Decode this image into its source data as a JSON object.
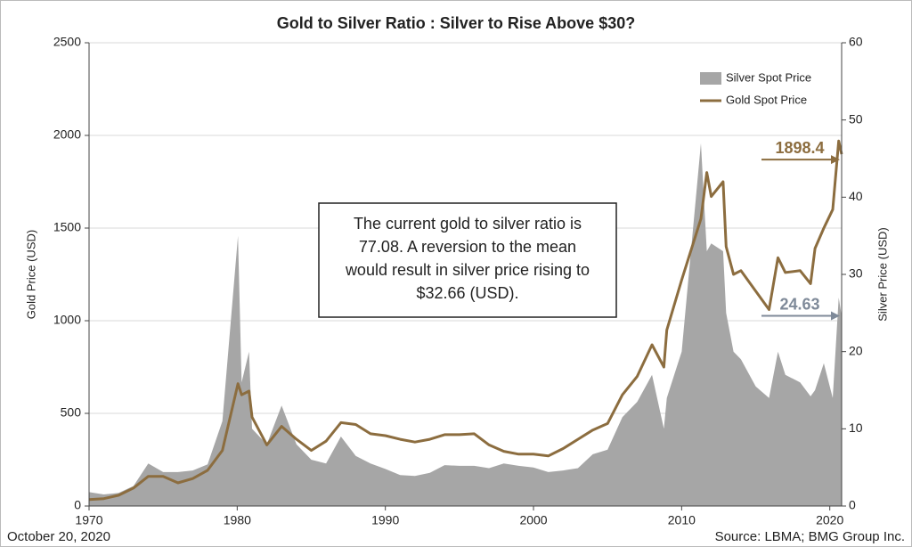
{
  "chart_data": {
    "type": "line",
    "title": "Gold to Silver Ratio : Silver to Rise Above $30?",
    "ylabel": "Gold Price (USD)",
    "y2label": "Silver Price (USD)",
    "date": "October 20, 2020",
    "source": "Source: LBMA; BMG Group Inc.",
    "annotation": [
      "The current gold to silver ratio is",
      "77.08. A reversion to the mean",
      "would result in silver price rising to",
      "$32.66 (USD)."
    ],
    "xlim": [
      1970,
      2020.8
    ],
    "xticks": [
      1970,
      1980,
      1990,
      2000,
      2010,
      2020
    ],
    "ylim": [
      0,
      2500
    ],
    "yticks": [
      0,
      500,
      1000,
      1500,
      2000,
      2500
    ],
    "y2lim": [
      0,
      60
    ],
    "y2ticks": [
      0,
      10,
      20,
      30,
      40,
      50,
      60
    ],
    "grid": true,
    "legend": "top-right",
    "x": [
      1970,
      1971,
      1972,
      1973,
      1974,
      1975,
      1976,
      1977,
      1978,
      1979,
      1980.05,
      1980.3,
      1980.8,
      1981,
      1982,
      1983,
      1984,
      1985,
      1986,
      1987,
      1988,
      1989,
      1990,
      1991,
      1992,
      1993,
      1994,
      1995,
      1996,
      1997,
      1998,
      1999,
      2000,
      2001,
      2002,
      2003,
      2004,
      2005,
      2006,
      2007,
      2008,
      2008.8,
      2009,
      2010,
      2011.3,
      2011.7,
      2012,
      2012.8,
      2013,
      2013.5,
      2014,
      2015,
      2015.9,
      2016.5,
      2017,
      2018,
      2018.7,
      2019,
      2019.6,
      2020.2,
      2020.6,
      2020.8
    ],
    "series": [
      {
        "name": "Silver Spot Price",
        "color": "#a6a6a6",
        "kind": "area",
        "axis": "y2",
        "values": [
          1.8,
          1.5,
          1.7,
          2.6,
          5.5,
          4.4,
          4.4,
          4.6,
          5.4,
          11,
          35,
          16,
          20,
          10,
          8,
          13,
          8,
          6,
          5.5,
          9,
          6.5,
          5.5,
          4.8,
          4,
          3.9,
          4.3,
          5.3,
          5.2,
          5.2,
          4.9,
          5.5,
          5.2,
          5,
          4.4,
          4.6,
          4.9,
          6.7,
          7.3,
          11.5,
          13.5,
          17,
          10,
          14,
          20,
          47,
          33,
          34,
          33,
          25,
          20,
          19,
          15.5,
          14,
          20,
          17,
          16,
          14.2,
          15,
          18.5,
          14,
          27,
          24.63
        ]
      },
      {
        "name": "Gold Spot Price",
        "color": "#8c6d3f",
        "kind": "line",
        "values": [
          35,
          40,
          58,
          97,
          160,
          160,
          125,
          148,
          193,
          300,
          660,
          600,
          620,
          480,
          330,
          430,
          360,
          300,
          350,
          450,
          440,
          390,
          380,
          360,
          345,
          360,
          385,
          385,
          390,
          330,
          295,
          280,
          280,
          270,
          310,
          360,
          410,
          445,
          600,
          700,
          870,
          750,
          950,
          1220,
          1550,
          1800,
          1670,
          1750,
          1400,
          1250,
          1270,
          1160,
          1060,
          1340,
          1260,
          1270,
          1200,
          1390,
          1500,
          1600,
          1970,
          1898.4
        ]
      }
    ]
  }
}
